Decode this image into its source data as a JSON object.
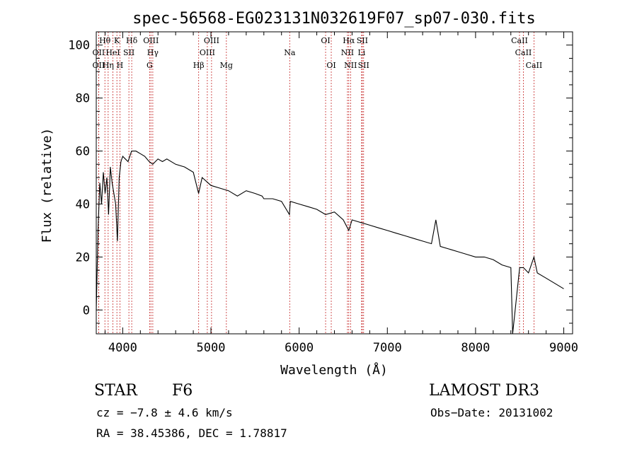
{
  "chart_data": {
    "type": "line",
    "title": "spec-56568-EG023131N032619F07_sp07-030.fits",
    "xlabel": "Wavelength (Å)",
    "ylabel": "Flux (relative)",
    "xlim": [
      3700,
      9100
    ],
    "ylim": [
      -9,
      105
    ],
    "xticks": [
      4000,
      5000,
      6000,
      7000,
      8000,
      9000
    ],
    "yticks": [
      0,
      20,
      40,
      60,
      80,
      100
    ],
    "grid": false,
    "series": [
      {
        "x": [
          3700,
          3720,
          3740,
          3760,
          3780,
          3800,
          3820,
          3840,
          3860,
          3880,
          3900,
          3920,
          3940,
          3960,
          3980,
          4000,
          4030,
          4060,
          4100,
          4150,
          4200,
          4250,
          4300,
          4340,
          4400,
          4450,
          4500,
          4600,
          4700,
          4800,
          4860,
          4900,
          5000,
          5100,
          5200,
          5300,
          5400,
          5500,
          5580,
          5600,
          5700,
          5800,
          5890,
          5900,
          6000,
          6100,
          6200,
          6300,
          6400,
          6500,
          6563,
          6600,
          6700,
          6800,
          6900,
          7000,
          7100,
          7200,
          7300,
          7400,
          7500,
          7550,
          7600,
          7700,
          7800,
          7900,
          8000,
          8100,
          8200,
          8300,
          8400,
          8420,
          8500,
          8542,
          8600,
          8662,
          8700,
          8800,
          8900,
          9000
        ],
        "y": [
          0,
          30,
          48,
          40,
          52,
          44,
          50,
          36,
          54,
          48,
          44,
          40,
          26,
          50,
          56,
          58,
          57,
          56,
          60,
          60,
          59,
          58,
          56,
          55,
          57,
          56,
          57,
          55,
          54,
          52,
          44,
          50,
          47,
          46,
          45,
          43,
          45,
          44,
          43,
          42,
          42,
          41,
          36,
          41,
          40,
          39,
          38,
          36,
          37,
          34,
          30,
          34,
          33,
          32,
          31,
          30,
          29,
          28,
          27,
          26,
          25,
          34,
          24,
          23,
          22,
          21,
          20,
          20,
          19,
          17,
          16,
          -9,
          16,
          16,
          14,
          20,
          14,
          12,
          10,
          8
        ]
      }
    ],
    "lines": [
      {
        "label": "OII",
        "x": 3727,
        "row": 2
      },
      {
        "label": "OII",
        "x": 3727,
        "row": 3
      },
      {
        "label": "Hθ",
        "x": 3798,
        "row": 1
      },
      {
        "label": "Hη",
        "x": 3835,
        "row": 3
      },
      {
        "label": "HeI",
        "x": 3889,
        "row": 2
      },
      {
        "label": "K",
        "x": 3934,
        "row": 1
      },
      {
        "label": "H",
        "x": 3968,
        "row": 3
      },
      {
        "label": "SII",
        "x": 4070,
        "row": 2
      },
      {
        "label": "Hδ",
        "x": 4102,
        "row": 1
      },
      {
        "label": "OIII",
        "x": 4320,
        "row": 1
      },
      {
        "label": "Hγ",
        "x": 4341,
        "row": 2
      },
      {
        "label": "G",
        "x": 4305,
        "row": 3
      },
      {
        "label": "Hβ",
        "x": 4861,
        "row": 3
      },
      {
        "label": "OIII",
        "x": 4959,
        "row": 2
      },
      {
        "label": "OIII",
        "x": 5007,
        "row": 1
      },
      {
        "label": "Mg",
        "x": 5175,
        "row": 3
      },
      {
        "label": "Na",
        "x": 5893,
        "row": 2
      },
      {
        "label": "OI",
        "x": 6300,
        "row": 1
      },
      {
        "label": "OI",
        "x": 6364,
        "row": 3
      },
      {
        "label": "Hα",
        "x": 6563,
        "row": 1
      },
      {
        "label": "NII",
        "x": 6548,
        "row": 2
      },
      {
        "label": "NII",
        "x": 6583,
        "row": 3
      },
      {
        "label": "SII",
        "x": 6716,
        "row": 1
      },
      {
        "label": "Li",
        "x": 6708,
        "row": 2
      },
      {
        "label": "SII",
        "x": 6731,
        "row": 3
      },
      {
        "label": "CaII",
        "x": 8498,
        "row": 1
      },
      {
        "label": "CaII",
        "x": 8542,
        "row": 2
      },
      {
        "label": "CaII",
        "x": 8662,
        "row": 3
      }
    ]
  },
  "info": {
    "object_type": "STAR",
    "subclass": "F6",
    "survey": "LAMOST DR3",
    "cz": "cz = −7.8 ± 4.6 km/s",
    "obs_date": "Obs−Date: 20131002",
    "coords": "RA =  38.45386, DEC =    1.78817"
  }
}
